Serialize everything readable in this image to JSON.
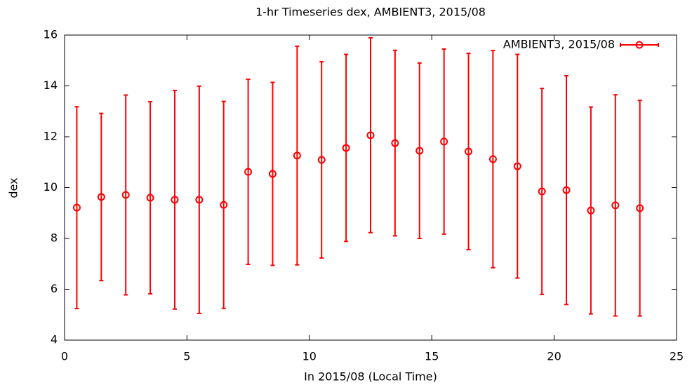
{
  "chart_data": {
    "type": "errorbar",
    "title": "1-hr Timeseries dex, AMBIENT3, 2015/08",
    "x_label": "In 2015/08 (Local Time)",
    "y_label": "dex",
    "x": [
      0.5,
      1.5,
      2.5,
      3.5,
      4.5,
      5.5,
      6.5,
      7.5,
      8.5,
      9.5,
      10.5,
      11.5,
      12.5,
      13.5,
      14.5,
      15.5,
      16.5,
      17.5,
      18.5,
      19.5,
      20.5,
      21.5,
      22.5,
      23.5
    ],
    "series": [
      {
        "name": "AMBIENT3, 2015/08",
        "color": "#ff0000",
        "values": [
          9.21,
          9.63,
          9.71,
          9.6,
          9.52,
          9.52,
          9.32,
          10.62,
          10.54,
          11.26,
          11.09,
          11.56,
          12.06,
          11.75,
          11.45,
          11.81,
          11.42,
          11.12,
          10.84,
          9.85,
          9.9,
          9.1,
          9.3,
          9.19
        ],
        "errors": [
          3.97,
          3.29,
          3.93,
          3.78,
          4.3,
          4.47,
          4.07,
          3.64,
          3.6,
          4.3,
          3.86,
          3.68,
          3.83,
          3.65,
          3.45,
          3.64,
          3.86,
          4.27,
          4.4,
          4.05,
          4.5,
          4.07,
          4.35,
          4.24
        ]
      }
    ],
    "xlim": [
      0,
      25
    ],
    "xticks": [
      0,
      5,
      10,
      15,
      20,
      25
    ],
    "ylim": [
      4,
      16
    ],
    "yticks": [
      4,
      6,
      8,
      10,
      12,
      14,
      16
    ],
    "legend": "top right"
  }
}
